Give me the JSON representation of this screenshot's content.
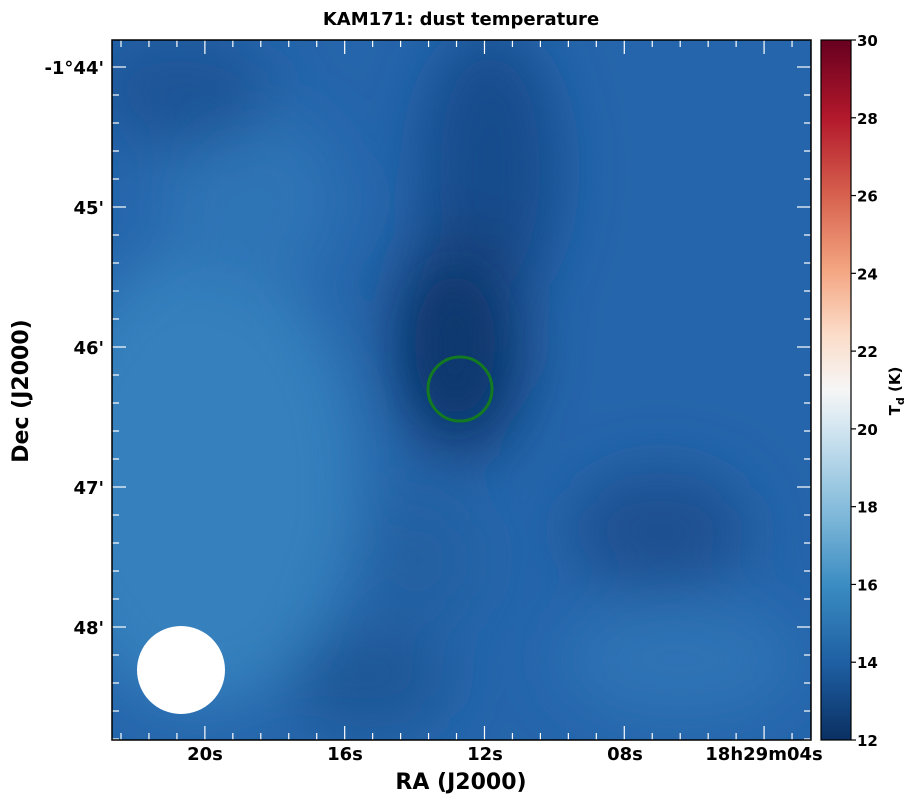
{
  "chart_data": {
    "type": "heatmap",
    "title": "KAM171: dust temperature",
    "xlabel": "RA (J2000)",
    "ylabel": "Dec (J2000)",
    "x_ticks": [
      "20s",
      "16s",
      "12s",
      "08s",
      "18h29m04s"
    ],
    "y_ticks": [
      "-1°44'",
      "45'",
      "46'",
      "47'",
      "48'"
    ],
    "colorbar": {
      "label_main": "T",
      "label_sub": "d",
      "label_unit": " (K)",
      "vmin": 12,
      "vmax": 30,
      "ticks": [
        12,
        14,
        16,
        18,
        20,
        22,
        24,
        26,
        28,
        30
      ],
      "colormap": "RdBu_r"
    },
    "field_description": "Dust temperature map ranging roughly 12.5-15.5 K; coldest (darkest) filament running north-south through the center, with a cold clump to the lower right and warmer regions toward the west.",
    "cold_regions": [
      {
        "ra_s": 12.7,
        "dec_arcmin": -46.0,
        "temp_k": 12.6
      },
      {
        "ra_s": 11.5,
        "dec_arcmin": -44.8,
        "temp_k": 13.2
      },
      {
        "ra_s": 13.5,
        "dec_arcmin": -45.5,
        "temp_k": 13.0
      },
      {
        "ra_s": 6.5,
        "dec_arcmin": -47.3,
        "temp_k": 13.1
      },
      {
        "ra_s": 14.5,
        "dec_arcmin": -48.3,
        "temp_k": 13.6
      }
    ],
    "background_temp_k": 14.7,
    "warm_regions": [
      {
        "ra_s": 19.5,
        "dec_arcmin": -47.0,
        "temp_k": 15.3
      },
      {
        "ra_s": 21.0,
        "dec_arcmin": -45.5,
        "temp_k": 14.9
      },
      {
        "ra_s": 6.0,
        "dec_arcmin": -48.5,
        "temp_k": 15.0
      }
    ],
    "marker": {
      "shape": "circle",
      "color": "#137a21",
      "ra_s": 12.7,
      "dec_arcmin": -46.3
    },
    "beam": {
      "shape": "filled-circle",
      "color": "#ffffff"
    }
  }
}
